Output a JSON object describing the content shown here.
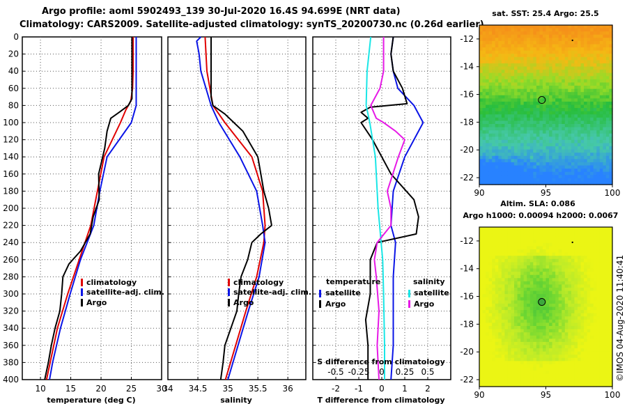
{
  "header": {
    "title_line1": "Argo profile: aoml 5902493_139 30-Jul-2020 16.4S 94.699E (NRT data)",
    "title_line2": "Climatology: CARS2009. Satellite-adjusted climatology: synTS_20200730.nc (0.26d earlier)"
  },
  "colors": {
    "climatology": "#e00000",
    "satellite": "#0a14e6",
    "argo": "#000000",
    "satellite_salinity": "#19e6e6",
    "argo_salinity": "#e619e6",
    "grid": "#555555"
  },
  "depth_axis": {
    "range": [
      0,
      400
    ],
    "ticks": [
      0,
      20,
      40,
      60,
      80,
      100,
      120,
      140,
      160,
      180,
      200,
      220,
      240,
      260,
      280,
      300,
      320,
      340,
      360,
      380,
      400
    ]
  },
  "chart_data": [
    {
      "id": "temperature_profile",
      "type": "line",
      "xlabel": "temperature (deg C)",
      "xlim": [
        7,
        30
      ],
      "xticks": [
        10,
        15,
        20,
        25,
        30
      ],
      "ylabel": "depth",
      "ylim": [
        400,
        0
      ],
      "legend": [
        "climatology",
        "satellite-adj. clim.",
        "Argo"
      ],
      "series": [
        {
          "name": "climatology",
          "color": "#e00000",
          "depth": [
            0,
            40,
            60,
            75,
            85,
            100,
            140,
            180,
            220,
            260,
            300,
            340,
            380,
            400
          ],
          "values": [
            25.3,
            25.3,
            25.2,
            24.9,
            24.1,
            23.2,
            20.5,
            19.4,
            18.3,
            16.4,
            14.5,
            12.8,
            11.6,
            11.0
          ]
        },
        {
          "name": "satellite-adj. clim.",
          "color": "#0a14e6",
          "depth": [
            0,
            40,
            80,
            90,
            100,
            140,
            180,
            220,
            260,
            300,
            340,
            380,
            400
          ],
          "values": [
            25.8,
            25.8,
            25.8,
            25.4,
            25.0,
            21.0,
            19.8,
            18.8,
            16.6,
            14.9,
            13.3,
            12.0,
            11.5
          ]
        },
        {
          "name": "Argo",
          "color": "#000000",
          "depth": [
            0,
            72,
            80,
            88,
            95,
            110,
            130,
            160,
            190,
            210,
            230,
            250,
            265,
            280,
            300,
            320,
            340,
            360,
            380,
            400
          ],
          "values": [
            25.1,
            25.1,
            24.5,
            23.0,
            21.6,
            21.0,
            20.6,
            19.6,
            19.7,
            18.7,
            18.2,
            16.6,
            14.7,
            13.7,
            13.5,
            13.2,
            12.4,
            11.8,
            11.3,
            10.7
          ]
        }
      ]
    },
    {
      "id": "salinity_profile",
      "type": "line",
      "xlabel": "salinity",
      "xlim": [
        34,
        36.3
      ],
      "xticks": [
        34,
        34.5,
        35,
        35.5,
        36
      ],
      "ylabel": "depth",
      "ylim": [
        400,
        0
      ],
      "legend": [
        "climatology",
        "satellite-adj. clim.",
        "Argo"
      ],
      "series": [
        {
          "name": "climatology",
          "color": "#e00000",
          "depth": [
            0,
            40,
            80,
            100,
            140,
            180,
            220,
            240,
            280,
            320,
            360,
            400
          ],
          "values": [
            34.62,
            34.65,
            34.75,
            34.95,
            35.4,
            35.58,
            35.62,
            35.6,
            35.48,
            35.3,
            35.13,
            34.96
          ]
        },
        {
          "name": "satellite-adj. clim.",
          "color": "#0a14e6",
          "depth": [
            0,
            5,
            20,
            40,
            80,
            100,
            140,
            180,
            220,
            240,
            280,
            320,
            360,
            400
          ],
          "values": [
            34.55,
            34.48,
            34.52,
            34.55,
            34.72,
            34.85,
            35.2,
            35.48,
            35.58,
            35.62,
            35.52,
            35.34,
            35.17,
            35.0
          ]
        },
        {
          "name": "Argo",
          "color": "#000000",
          "depth": [
            0,
            70,
            80,
            90,
            100,
            110,
            140,
            180,
            200,
            220,
            230,
            240,
            260,
            280,
            300,
            320,
            340,
            360,
            380,
            400
          ],
          "values": [
            34.72,
            34.72,
            34.75,
            34.95,
            35.1,
            35.25,
            35.5,
            35.6,
            35.68,
            35.73,
            35.55,
            35.4,
            35.33,
            35.22,
            35.18,
            35.15,
            35.05,
            34.95,
            34.92,
            34.88
          ]
        }
      ]
    },
    {
      "id": "difference_profile",
      "type": "line",
      "xlabel": "T difference from climatology",
      "xlim": [
        -3,
        3
      ],
      "xticks": [
        -2,
        -1,
        0,
        1,
        2
      ],
      "top_xlabel": "S difference from climatology",
      "top_xlim": [
        -0.75,
        0.75
      ],
      "top_xticks": [
        -0.5,
        -0.25,
        0,
        0.25,
        0.5
      ],
      "ylabel": "depth",
      "ylim": [
        400,
        0
      ],
      "legend_temperature_title": "temperature",
      "legend_salinity_title": "salinity",
      "legend_temperature": [
        "satellite",
        "Argo"
      ],
      "legend_salinity": [
        "satellite",
        "Argo"
      ],
      "series": [
        {
          "name": "T satellite",
          "quantity": "T",
          "color": "#0a14e6",
          "depth": [
            0,
            20,
            40,
            60,
            80,
            100,
            140,
            180,
            220,
            240,
            280,
            320,
            360,
            400
          ],
          "values": [
            0.5,
            0.4,
            0.5,
            0.7,
            1.4,
            1.8,
            1.0,
            0.5,
            0.4,
            0.6,
            0.5,
            0.5,
            0.5,
            0.4
          ]
        },
        {
          "name": "T Argo",
          "quantity": "T",
          "color": "#000000",
          "depth": [
            0,
            20,
            40,
            60,
            78,
            82,
            88,
            95,
            100,
            120,
            160,
            190,
            210,
            230,
            240,
            260,
            300,
            330,
            360,
            400
          ],
          "values": [
            0.5,
            0.4,
            0.5,
            0.9,
            1.1,
            -0.5,
            -0.9,
            -0.6,
            -0.9,
            -0.4,
            0.4,
            1.4,
            1.6,
            1.5,
            -0.2,
            -0.5,
            -0.5,
            -0.7,
            -0.6,
            -0.6
          ]
        },
        {
          "name": "S satellite",
          "quantity": "S",
          "color": "#19e6e6",
          "depth": [
            0,
            40,
            80,
            100,
            140,
            200,
            260,
            300,
            360,
            400
          ],
          "values": [
            -0.12,
            -0.16,
            -0.17,
            -0.13,
            -0.07,
            -0.04,
            0.01,
            0.02,
            0.03,
            0.03
          ]
        },
        {
          "name": "S Argo",
          "quantity": "S",
          "color": "#e619e6",
          "depth": [
            0,
            20,
            40,
            60,
            80,
            95,
            100,
            110,
            120,
            140,
            180,
            200,
            220,
            240,
            260,
            280,
            320,
            360,
            400
          ],
          "values": [
            0.02,
            0.02,
            0.02,
            -0.02,
            -0.12,
            -0.06,
            0.02,
            0.15,
            0.25,
            0.18,
            0.06,
            0.1,
            0.1,
            -0.05,
            -0.08,
            -0.06,
            -0.03,
            -0.05,
            -0.03
          ]
        }
      ]
    },
    {
      "id": "sst_map",
      "type": "heatmap",
      "title": "sat. SST: 25.4 Argo: 25.5",
      "xlim": [
        90,
        100
      ],
      "xticks": [
        90,
        95,
        100
      ],
      "ylim": [
        -22.5,
        -11
      ],
      "yticks": [
        -12,
        -14,
        -16,
        -18,
        -20,
        -22
      ],
      "field": "SST warm north (orange) to cool south (green/blue)",
      "argo_location": [
        94.7,
        -16.4
      ],
      "small_marker": [
        97.0,
        -12.1
      ]
    },
    {
      "id": "sla_map",
      "type": "heatmap",
      "title_line1": "Altim. SLA: 0.086",
      "title_line2": "Argo h1000: 0.00094 h2000: 0.0067",
      "xlim": [
        90,
        100
      ],
      "xticks": [
        90,
        95,
        100
      ],
      "ylim": [
        -22.5,
        -11
      ],
      "yticks": [
        -12,
        -14,
        -16,
        -18,
        -20,
        -22
      ],
      "argo_location": [
        94.7,
        -16.4
      ],
      "small_marker": [
        97.0,
        -12.1
      ]
    }
  ],
  "footer": {
    "credit": "©IMOS 04-Aug-2020 11:40:41"
  }
}
